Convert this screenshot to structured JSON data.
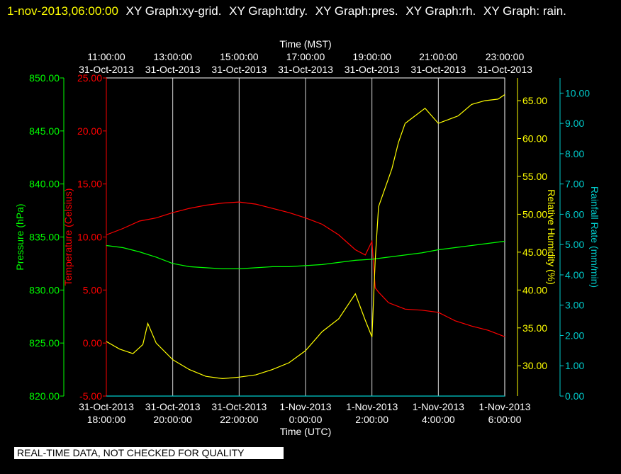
{
  "header": {
    "timestamp": "1-nov-2013,06:00:00",
    "graph_labels": [
      "XY Graph:xy-grid.",
      "XY Graph:tdry.",
      "XY Graph:pres.",
      "XY Graph:rh.",
      "XY Graph:",
      "rain."
    ]
  },
  "footer": {
    "quality_notice": "REAL-TIME DATA, NOT CHECKED FOR QUALITY"
  },
  "colors": {
    "background": "#000000",
    "grid": "#ffffff",
    "temperature": "#ff0000",
    "pressure": "#00ff00",
    "humidity": "#ffff00",
    "rain": "#00cccc",
    "timestamp": "#ffff00"
  },
  "chart_data": {
    "type": "line",
    "grid": true,
    "top_axis": {
      "title": "Time (MST)",
      "ticks": [
        [
          "11:00:00",
          "31-Oct-2013"
        ],
        [
          "13:00:00",
          "31-Oct-2013"
        ],
        [
          "15:00:00",
          "31-Oct-2013"
        ],
        [
          "17:00:00",
          "31-Oct-2013"
        ],
        [
          "19:00:00",
          "31-Oct-2013"
        ],
        [
          "21:00:00",
          "31-Oct-2013"
        ],
        [
          "23:00:00",
          "31-Oct-2013"
        ]
      ]
    },
    "bottom_axis": {
      "title": "Time (UTC)",
      "ticks": [
        [
          "31-Oct-2013",
          "18:00:00"
        ],
        [
          "31-Oct-2013",
          "20:00:00"
        ],
        [
          "31-Oct-2013",
          "22:00:00"
        ],
        [
          "1-Nov-2013",
          "0:00:00"
        ],
        [
          "1-Nov-2013",
          "2:00:00"
        ],
        [
          "1-Nov-2013",
          "4:00:00"
        ],
        [
          "1-Nov-2013",
          "6:00:00"
        ]
      ],
      "x_units": "hours since 31-Oct-2013 18:00 UTC",
      "xlim": [
        0,
        12
      ]
    },
    "axes": {
      "pressure": {
        "label": "Pressure (hPa)",
        "ylim": [
          820,
          850
        ],
        "ticks": [
          "820.00",
          "825.00",
          "830.00",
          "835.00",
          "840.00",
          "845.00",
          "850.00"
        ]
      },
      "temperature": {
        "label": "Temperature (Celsius)",
        "ylim": [
          -5,
          25
        ],
        "ticks": [
          "-5.00",
          "0.00",
          "5.00",
          "10.00",
          "15.00",
          "20.00",
          "25.00"
        ]
      },
      "humidity": {
        "label": "Relative Humidity (%)",
        "ylim": [
          26,
          68
        ],
        "ticks": [
          "30.00",
          "35.00",
          "40.00",
          "45.00",
          "50.00",
          "55.00",
          "60.00",
          "65.00"
        ]
      },
      "rain": {
        "label": "Rainfall Rate (mm/min)",
        "ylim": [
          0,
          10.5
        ],
        "ticks": [
          "0.00",
          "1.00",
          "2.00",
          "3.00",
          "4.00",
          "5.00",
          "6.00",
          "7.00",
          "8.00",
          "9.00",
          "10.00"
        ]
      }
    },
    "series": [
      {
        "name": "tdry",
        "axis": "temperature",
        "x": [
          0,
          0.5,
          1,
          1.5,
          2,
          2.5,
          3,
          3.5,
          4,
          4.5,
          5,
          5.5,
          6,
          6.5,
          7,
          7.5,
          7.8,
          8,
          8.1,
          8.2,
          8.5,
          9,
          9.5,
          10,
          10.5,
          11,
          11.5,
          12
        ],
        "y": [
          10.2,
          10.8,
          11.5,
          11.8,
          12.3,
          12.7,
          13,
          13.2,
          13.3,
          13.1,
          12.7,
          12.3,
          11.8,
          11.2,
          10.2,
          8.8,
          8.3,
          9.6,
          5.2,
          4.8,
          3.8,
          3.2,
          3.1,
          2.9,
          2.1,
          1.6,
          1.2,
          0.6
        ]
      },
      {
        "name": "pres",
        "axis": "pressure",
        "x": [
          0,
          0.5,
          1,
          1.5,
          2,
          2.5,
          3,
          3.5,
          4,
          4.5,
          5,
          5.5,
          6,
          6.5,
          7,
          7.5,
          8,
          8.5,
          9,
          9.5,
          10,
          10.5,
          11,
          11.5,
          12
        ],
        "y": [
          834.2,
          834,
          833.6,
          833.1,
          832.5,
          832.2,
          832.1,
          832,
          832,
          832.1,
          832.2,
          832.2,
          832.3,
          832.4,
          832.6,
          832.8,
          832.9,
          833.1,
          833.3,
          833.5,
          833.8,
          834,
          834.2,
          834.4,
          834.6
        ]
      },
      {
        "name": "rh",
        "axis": "humidity",
        "x": [
          0,
          0.4,
          0.8,
          1.1,
          1.25,
          1.5,
          2,
          2.5,
          3,
          3.5,
          4,
          4.5,
          5,
          5.5,
          6,
          6.5,
          7,
          7.5,
          7.8,
          8,
          8.1,
          8.2,
          8.4,
          8.6,
          8.8,
          9,
          9.3,
          9.6,
          10,
          10.3,
          10.6,
          11,
          11.4,
          11.8,
          12
        ],
        "y": [
          33.2,
          32.2,
          31.6,
          32.8,
          35.6,
          33,
          30.8,
          29.5,
          28.6,
          28.3,
          28.5,
          28.8,
          29.5,
          30.4,
          32,
          34.5,
          36.2,
          39.5,
          36,
          33.8,
          44,
          51,
          53.5,
          56,
          59.5,
          62,
          63,
          64,
          62,
          62.5,
          63,
          64.5,
          65,
          65.2,
          65.8
        ]
      },
      {
        "name": "rain",
        "axis": "rain",
        "x": [
          0,
          12
        ],
        "y": [
          0,
          0
        ]
      }
    ]
  }
}
